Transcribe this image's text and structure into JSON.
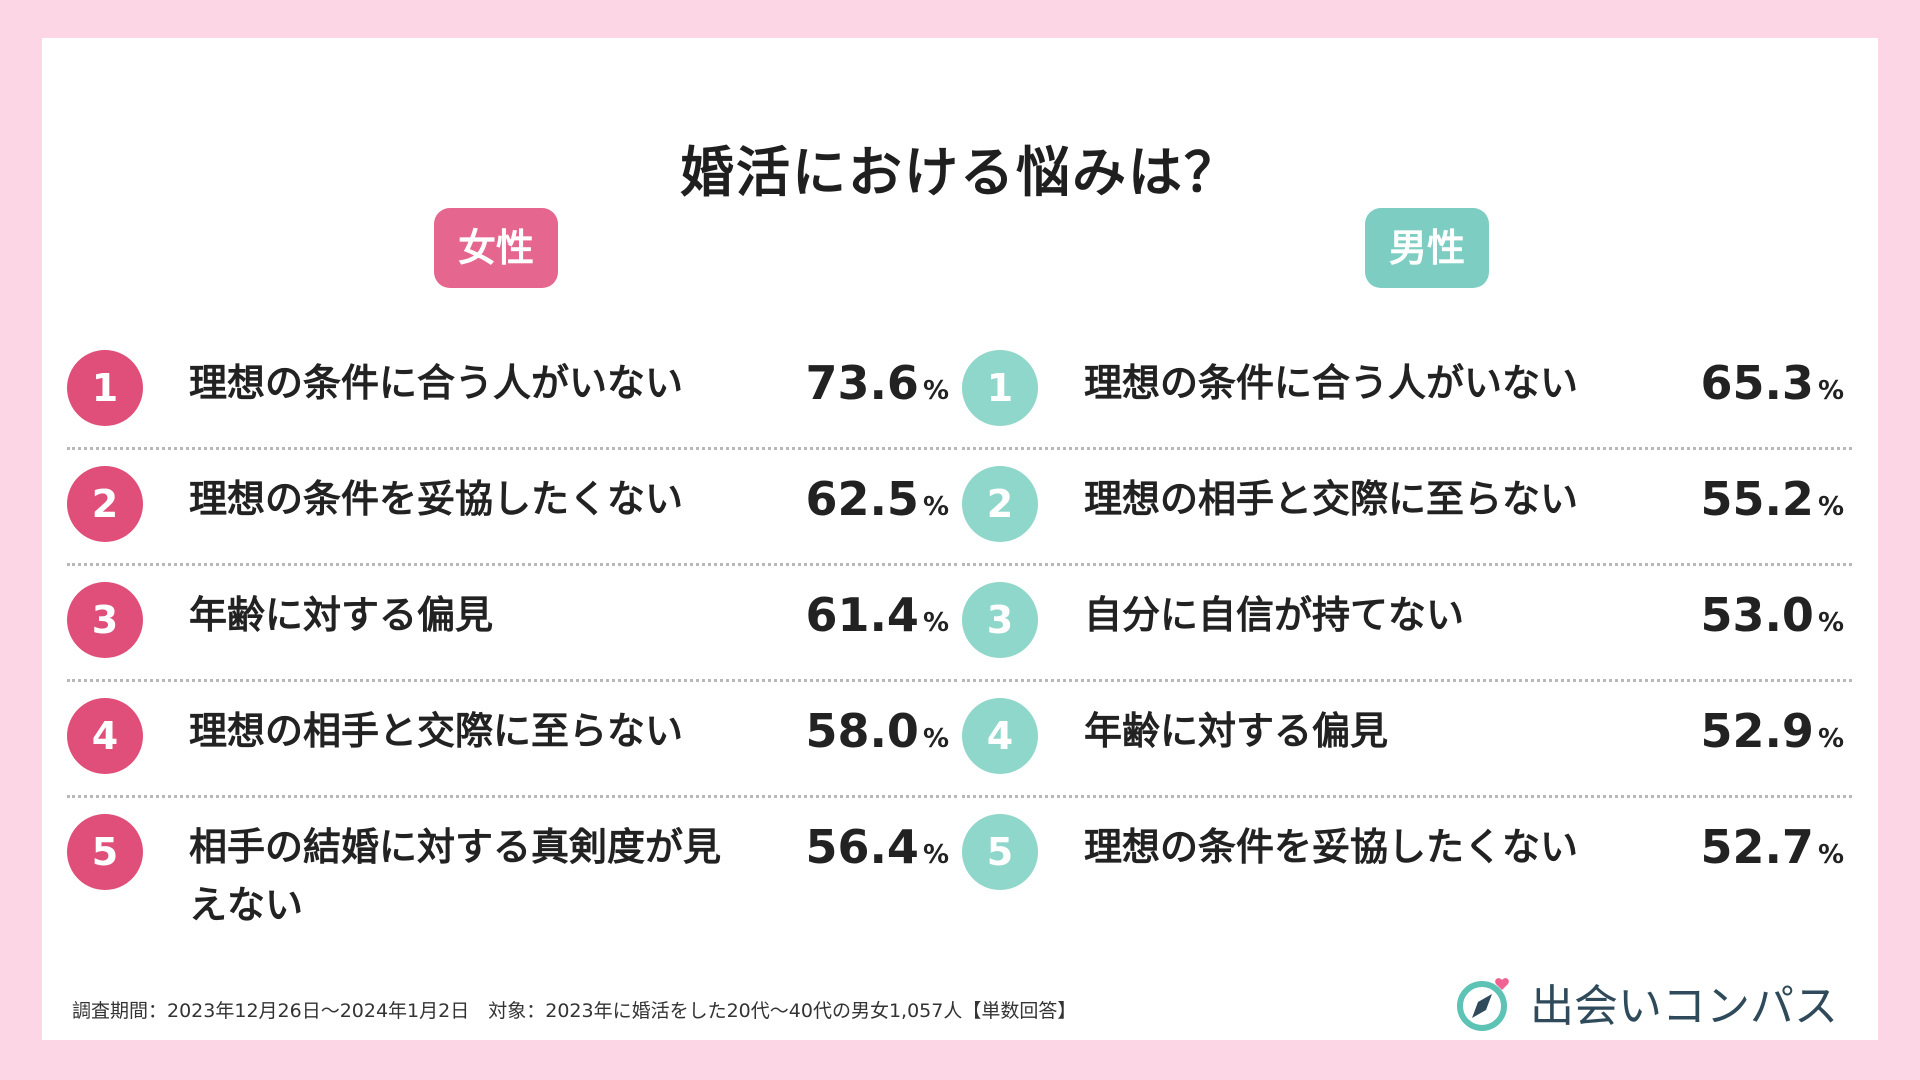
{
  "title": "婚活における悩みは？",
  "chart_data": {
    "type": "table",
    "groups": [
      {
        "name": "女性",
        "unit": "%",
        "items": [
          {
            "rank": "1",
            "label": "理想の条件に合う人がいない",
            "value": "73.6"
          },
          {
            "rank": "2",
            "label": "理想の条件を妥協したくない",
            "value": "62.5"
          },
          {
            "rank": "3",
            "label": "年齢に対する偏見",
            "value": "61.4"
          },
          {
            "rank": "4",
            "label": "理想の相手と交際に至らない",
            "value": "58.0"
          },
          {
            "rank": "5",
            "label": "相手の結婚に対する真剣度が見えない",
            "value": "56.4"
          }
        ]
      },
      {
        "name": "男性",
        "unit": "%",
        "items": [
          {
            "rank": "1",
            "label": "理想の条件に合う人がいない",
            "value": "65.3"
          },
          {
            "rank": "2",
            "label": "理想の相手と交際に至らない",
            "value": "55.2"
          },
          {
            "rank": "3",
            "label": "自分に自信が持てない",
            "value": "53.0"
          },
          {
            "rank": "4",
            "label": "年齢に対する偏見",
            "value": "52.9"
          },
          {
            "rank": "5",
            "label": "理想の条件を妥協したくない",
            "value": "52.7"
          }
        ]
      }
    ]
  },
  "footer": "調査期間：2023年12月26日〜2024年1月2日　対象：2023年に婚活をした20代〜40代の男女1,057人【単数回答】",
  "logo": {
    "text": "出会いコンパス",
    "icon": "compass-heart-icon",
    "colors": {
      "ring": "#5cc3b5",
      "needle": "#2f4a5a",
      "heart": "#f06292"
    }
  },
  "colors": {
    "female": "#e5668e",
    "male": "#7ecdc2",
    "background": "#fdd6e6"
  }
}
